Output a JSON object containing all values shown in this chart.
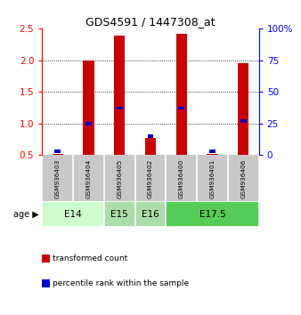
{
  "title": "GDS4591 / 1447308_at",
  "samples": [
    "GSM936403",
    "GSM936404",
    "GSM936405",
    "GSM936402",
    "GSM936400",
    "GSM936401",
    "GSM936406"
  ],
  "transformed_count": [
    0.52,
    2.0,
    2.38,
    0.78,
    2.42,
    0.52,
    1.95
  ],
  "percentile_rank_pct": [
    3,
    25,
    37,
    15,
    37,
    3,
    27
  ],
  "age_groups": [
    {
      "label": "E14",
      "samples": [
        0,
        1
      ],
      "color": "#ccffcc"
    },
    {
      "label": "E15",
      "samples": [
        2
      ],
      "color": "#aaddaa"
    },
    {
      "label": "E16",
      "samples": [
        3
      ],
      "color": "#aaddaa"
    },
    {
      "label": "E17.5",
      "samples": [
        4,
        5,
        6
      ],
      "color": "#55cc55"
    }
  ],
  "ylim_left": [
    0.5,
    2.5
  ],
  "ylim_right": [
    0,
    100
  ],
  "yticks_left": [
    0.5,
    1.0,
    1.5,
    2.0,
    2.5
  ],
  "yticks_right": [
    0,
    25,
    50,
    75,
    100
  ],
  "ytick_labels_right": [
    "0",
    "25",
    "50",
    "75",
    "100%"
  ],
  "grid_lines": [
    1.0,
    1.5,
    2.0
  ],
  "bar_color_red": "#cc0000",
  "bar_color_blue": "#0000cc",
  "bar_width": 0.35,
  "blue_bar_width": 0.2,
  "blue_bar_height": 0.05,
  "background_samples": "#c8c8c8",
  "sample_divider_color": "#ffffff",
  "legend_items": [
    {
      "color": "#cc0000",
      "label": "transformed count"
    },
    {
      "color": "#0000cc",
      "label": "percentile rank within the sample"
    }
  ]
}
